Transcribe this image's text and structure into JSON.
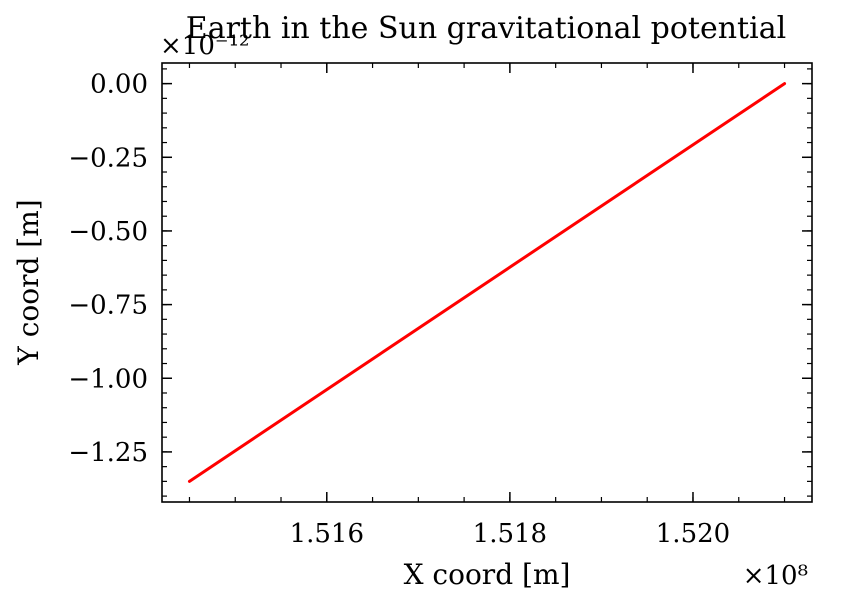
{
  "chart_data": {
    "type": "line",
    "title": "Earth in the Sun gravitational potential",
    "xlabel": "X coord [m]",
    "ylabel": "Y coord [m]",
    "x_offset_text": "×10⁸",
    "y_offset_text": "×10⁻¹²",
    "xlim": [
      151420000,
      152130000
    ],
    "ylim": [
      -1.42e-12,
      7e-14
    ],
    "xticks": [
      151600000,
      151800000,
      152000000
    ],
    "xtick_labels": [
      "1.516",
      "1.518",
      "1.520"
    ],
    "yticks": [
      0,
      -2.5e-13,
      -5e-13,
      -7.5e-13,
      -1e-12,
      -1.25e-12
    ],
    "ytick_labels": [
      "0.00",
      "−0.25",
      "−0.50",
      "−0.75",
      "−1.00",
      "−1.25"
    ],
    "grid": false,
    "series": [
      {
        "color": "#ff0000",
        "x": [
          151450000,
          152100000
        ],
        "y": [
          -1.35e-12,
          0
        ]
      }
    ]
  }
}
